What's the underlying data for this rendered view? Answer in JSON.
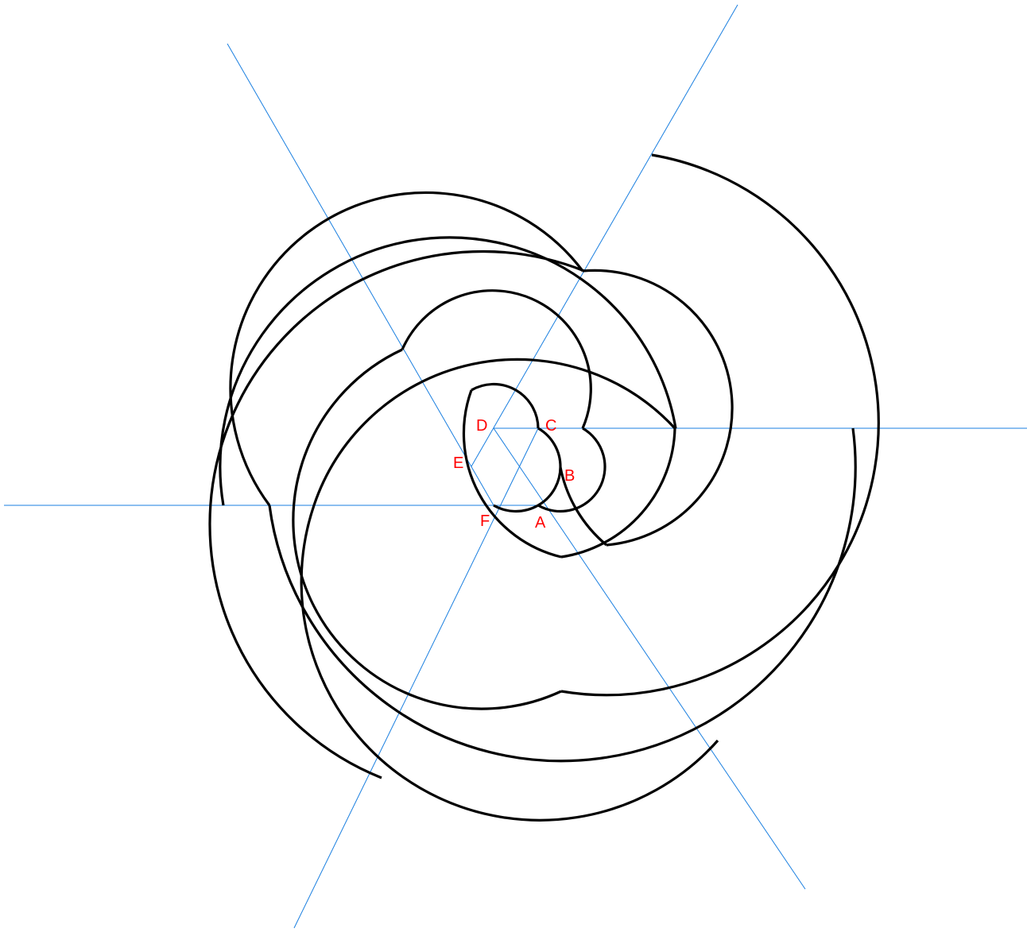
{
  "colors": {
    "guide_lines": "#1a7fe0",
    "spiral": "#000000",
    "labels": "#ff0000",
    "background": "#ffffff"
  },
  "labels": {
    "a": "A",
    "b": "B",
    "c": "C",
    "d": "D",
    "e": "E",
    "f": "F"
  }
}
